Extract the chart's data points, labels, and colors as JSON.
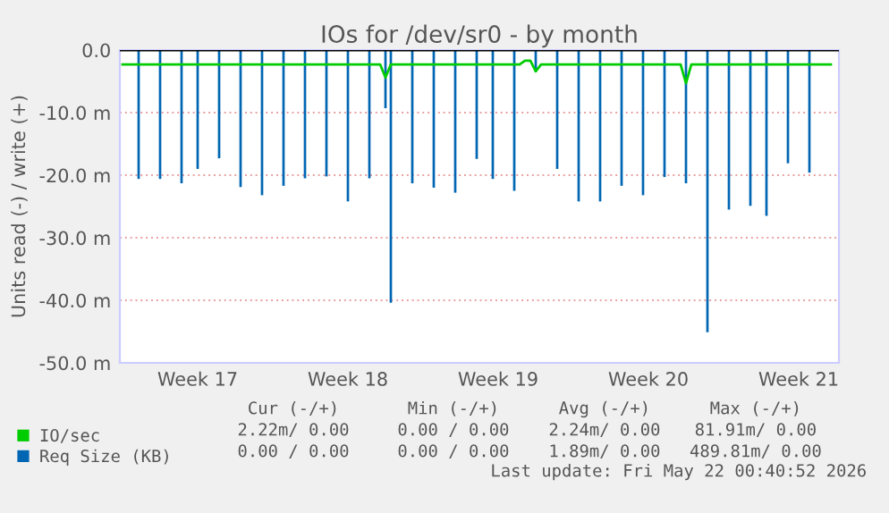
{
  "chart_data": {
    "type": "line",
    "title": "IOs for /dev/sr0 - by month",
    "ylabel": "Units read (-) / write (+)",
    "categories": [
      null,
      null,
      null,
      null,
      null,
      null,
      null,
      null,
      null,
      null,
      null,
      null,
      null,
      null,
      "Week 17",
      null,
      null,
      null,
      null,
      null,
      null,
      null,
      null,
      null,
      null,
      null,
      null,
      null,
      null,
      null,
      null,
      null,
      null,
      null,
      null,
      null,
      null,
      null,
      null,
      null,
      null,
      null,
      "Week 18",
      null,
      null,
      null,
      null,
      null,
      null,
      null,
      null,
      null,
      null,
      null,
      null,
      null,
      null,
      null,
      null,
      null,
      null,
      null,
      null,
      null,
      null,
      null,
      null,
      null,
      null,
      null,
      "Week 19",
      null,
      null,
      null,
      null,
      null,
      null,
      null,
      null,
      null,
      null,
      null,
      null,
      null,
      null,
      null,
      null,
      null,
      null,
      null,
      null,
      null,
      null,
      null,
      null,
      null,
      null,
      null,
      "Week 20",
      null,
      null,
      null,
      null,
      null,
      null,
      null,
      null,
      null,
      null,
      null,
      null,
      null,
      null,
      null,
      null,
      null,
      null,
      null,
      null,
      null,
      null,
      null,
      null,
      null,
      null,
      null,
      "Week 21",
      null,
      null,
      null,
      null,
      null,
      null,
      null
    ],
    "ylim": [
      -50,
      0
    ],
    "yticks": [
      {
        "value": 0,
        "label": "0.0"
      },
      {
        "value": -10,
        "label": "-10.0 m"
      },
      {
        "value": -20,
        "label": "-20.0 m"
      },
      {
        "value": -30,
        "label": "-30.0 m"
      },
      {
        "value": -40,
        "label": "-40.0 m"
      },
      {
        "value": -50,
        "label": "-50.0 m"
      }
    ],
    "grid": "y",
    "legend": "bottom left",
    "ref_lines": [
      {
        "axis": "y",
        "value": 0,
        "label": null,
        "color": "#000000"
      }
    ],
    "series": [
      {
        "name": "IO/sec",
        "color": "#00cc00",
        "values": [
          -2.3,
          -2.3,
          -2.3,
          -2.3,
          -2.3,
          -2.3,
          -2.3,
          -2.3,
          -2.3,
          -2.3,
          -2.3,
          -2.3,
          -2.3,
          -2.3,
          -2.3,
          -2.3,
          -2.3,
          -2.3,
          -2.3,
          -2.3,
          -2.3,
          -2.3,
          -2.3,
          -2.3,
          -2.3,
          -2.3,
          -2.3,
          -2.3,
          -2.3,
          -2.3,
          -2.3,
          -2.3,
          -2.3,
          -2.3,
          -2.3,
          -2.3,
          -2.3,
          -2.3,
          -2.3,
          -2.3,
          -2.3,
          -2.3,
          -2.3,
          -2.3,
          -2.3,
          -2.3,
          -2.3,
          -2.3,
          -2.3,
          -4.4,
          -2.3,
          -2.3,
          -2.3,
          -2.3,
          -2.3,
          -2.3,
          -2.3,
          -2.3,
          -2.3,
          -2.3,
          -2.3,
          -2.3,
          -2.3,
          -2.3,
          -2.3,
          -2.3,
          -2.3,
          -2.3,
          -2.3,
          -2.3,
          -2.3,
          -2.3,
          -2.3,
          -2.3,
          -2.3,
          -1.7,
          -1.7,
          -3.4,
          -2.3,
          -2.3,
          -2.3,
          -2.3,
          -2.3,
          -2.3,
          -2.3,
          -2.3,
          -2.3,
          -2.3,
          -2.3,
          -2.3,
          -2.3,
          -2.3,
          -2.3,
          -2.3,
          -2.3,
          -2.3,
          -2.3,
          -2.3,
          -2.3,
          -2.3,
          -2.3,
          -2.3,
          -2.3,
          -2.3,
          -2.3,
          -5.3,
          -2.3,
          -2.3,
          -2.3,
          -2.3,
          -2.3,
          -2.3,
          -2.3,
          -2.3,
          -2.3,
          -2.3,
          -2.3,
          -2.3,
          -2.3,
          -2.3,
          -2.3,
          -2.3,
          -2.3,
          -2.3,
          -2.3,
          -2.3,
          -2.3,
          -2.3,
          -2.3,
          -2.3,
          -2.3,
          -2.3,
          -2.3,
          null
        ]
      },
      {
        "name": "Req Size (KB)",
        "color": "#0066b3",
        "type": "bar",
        "values": [
          null,
          null,
          null,
          -20.6,
          null,
          null,
          null,
          -20.6,
          null,
          null,
          null,
          -21.3,
          null,
          null,
          -19.0,
          null,
          null,
          null,
          -17.3,
          null,
          null,
          null,
          -21.9,
          null,
          null,
          null,
          -23.2,
          null,
          null,
          null,
          -21.7,
          null,
          null,
          null,
          -20.5,
          null,
          null,
          null,
          -20.2,
          null,
          null,
          null,
          -24.2,
          null,
          null,
          null,
          -20.5,
          null,
          null,
          -9.3,
          -40.4,
          null,
          null,
          null,
          -21.3,
          null,
          null,
          null,
          -22.0,
          null,
          null,
          null,
          -22.8,
          null,
          null,
          null,
          -17.4,
          null,
          null,
          -20.6,
          null,
          null,
          null,
          -22.5,
          null,
          null,
          null,
          -3.0,
          null,
          null,
          null,
          -19.0,
          null,
          null,
          null,
          -24.2,
          null,
          null,
          null,
          -24.2,
          null,
          null,
          null,
          -21.7,
          null,
          null,
          null,
          -23.2,
          null,
          null,
          null,
          -20.3,
          null,
          null,
          null,
          -21.3,
          null,
          null,
          null,
          -45.1,
          null,
          null,
          null,
          -25.5,
          null,
          null,
          null,
          -24.9,
          null,
          null,
          -26.5,
          null,
          null,
          null,
          -18.1,
          null,
          null,
          null,
          -19.6,
          null,
          null,
          null,
          null,
          null
        ]
      }
    ],
    "annotations": [
      "Cur (-/+)",
      "Min (-/+)",
      "Avg (-/+)",
      "Max (-/+)",
      "2.22m/ 0.00",
      "0.00 / 0.00",
      "2.24m/ 0.00",
      "81.91m/ 0.00",
      "0.00 / 0.00",
      "0.00 / 0.00",
      "1.89m/ 0.00",
      "489.81m/ 0.00",
      "Last update: Fri May 22 00:40:52 2026"
    ]
  }
}
